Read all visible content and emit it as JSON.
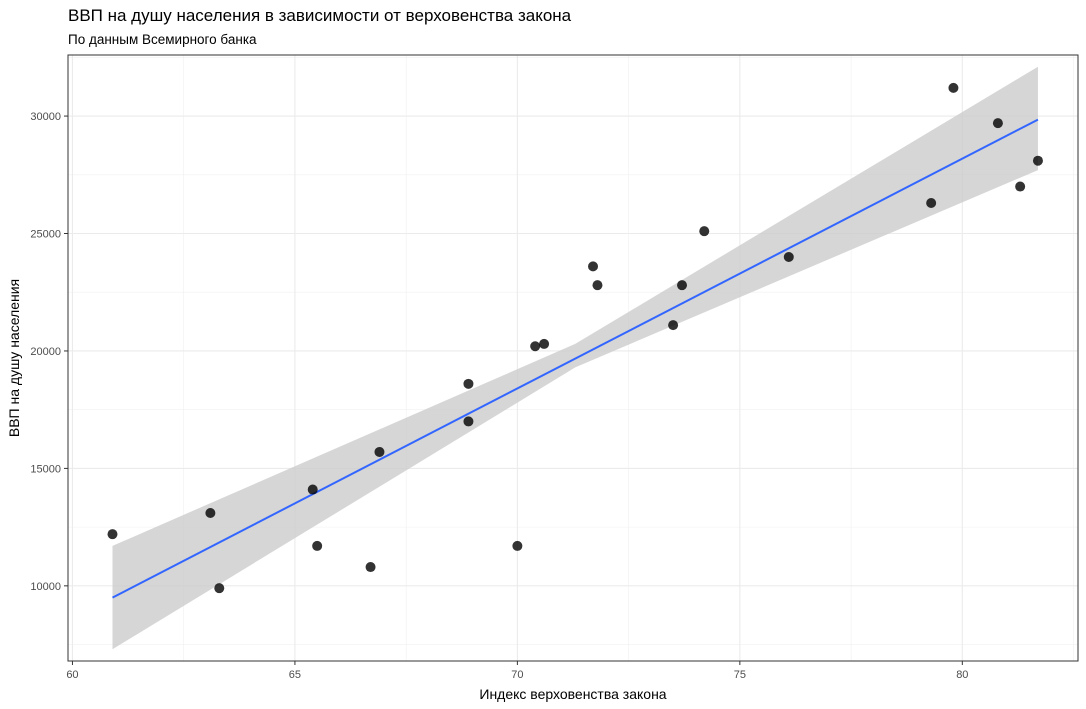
{
  "chart_data": {
    "type": "scatter",
    "title": "ВВП на душу населения в зависимости от верховенства закона",
    "subtitle": "По данным Всемирного банка",
    "xlabel": "Индекс верховенства закона",
    "ylabel": "ВВП на душу населения",
    "xlim": [
      59.9,
      82.6
    ],
    "ylim": [
      6800,
      32600
    ],
    "x_ticks": [
      60,
      65,
      70,
      75,
      80
    ],
    "y_ticks": [
      10000,
      15000,
      20000,
      25000,
      30000
    ],
    "grid": true,
    "point_color": "#000000",
    "points": [
      {
        "x": 60.9,
        "y": 12200
      },
      {
        "x": 63.1,
        "y": 13100
      },
      {
        "x": 63.3,
        "y": 9900
      },
      {
        "x": 65.4,
        "y": 14100
      },
      {
        "x": 65.5,
        "y": 11700
      },
      {
        "x": 66.7,
        "y": 10800
      },
      {
        "x": 66.9,
        "y": 15700
      },
      {
        "x": 68.9,
        "y": 18600
      },
      {
        "x": 68.9,
        "y": 17000
      },
      {
        "x": 70.0,
        "y": 11700
      },
      {
        "x": 70.4,
        "y": 20200
      },
      {
        "x": 70.6,
        "y": 20300
      },
      {
        "x": 71.7,
        "y": 23600
      },
      {
        "x": 71.8,
        "y": 22800
      },
      {
        "x": 73.5,
        "y": 21100
      },
      {
        "x": 73.7,
        "y": 22800
      },
      {
        "x": 74.2,
        "y": 25100
      },
      {
        "x": 76.1,
        "y": 24000
      },
      {
        "x": 79.3,
        "y": 26300
      },
      {
        "x": 79.8,
        "y": 31200
      },
      {
        "x": 80.8,
        "y": 29700
      },
      {
        "x": 81.3,
        "y": 27000
      },
      {
        "x": 81.7,
        "y": 28100
      }
    ],
    "trend_line": {
      "color": "#3366ff",
      "x": [
        60.9,
        81.7
      ],
      "y": [
        9500,
        29850
      ]
    },
    "confidence_band": {
      "color": "#cccccc",
      "x": [
        60.9,
        71.3,
        81.7
      ],
      "lower": [
        7300,
        19300,
        27700
      ],
      "upper": [
        11700,
        20300,
        32100
      ]
    }
  }
}
